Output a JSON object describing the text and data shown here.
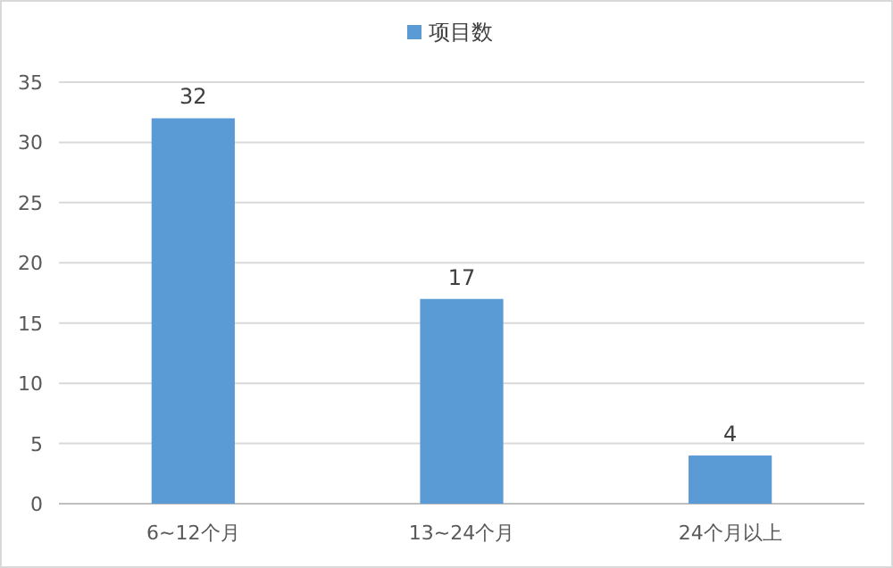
{
  "chart_data": {
    "type": "bar",
    "categories": [
      "6~12个月",
      "13~24个月",
      "24个月以上"
    ],
    "series": [
      {
        "name": "项目数",
        "color": "#5b9bd5",
        "values": [
          32,
          17,
          4
        ]
      }
    ],
    "ylim": [
      0,
      35
    ],
    "yticks": [
      0,
      5,
      10,
      15,
      20,
      25,
      30,
      35
    ],
    "grid": "y",
    "legend": "top",
    "data_labels": true
  }
}
